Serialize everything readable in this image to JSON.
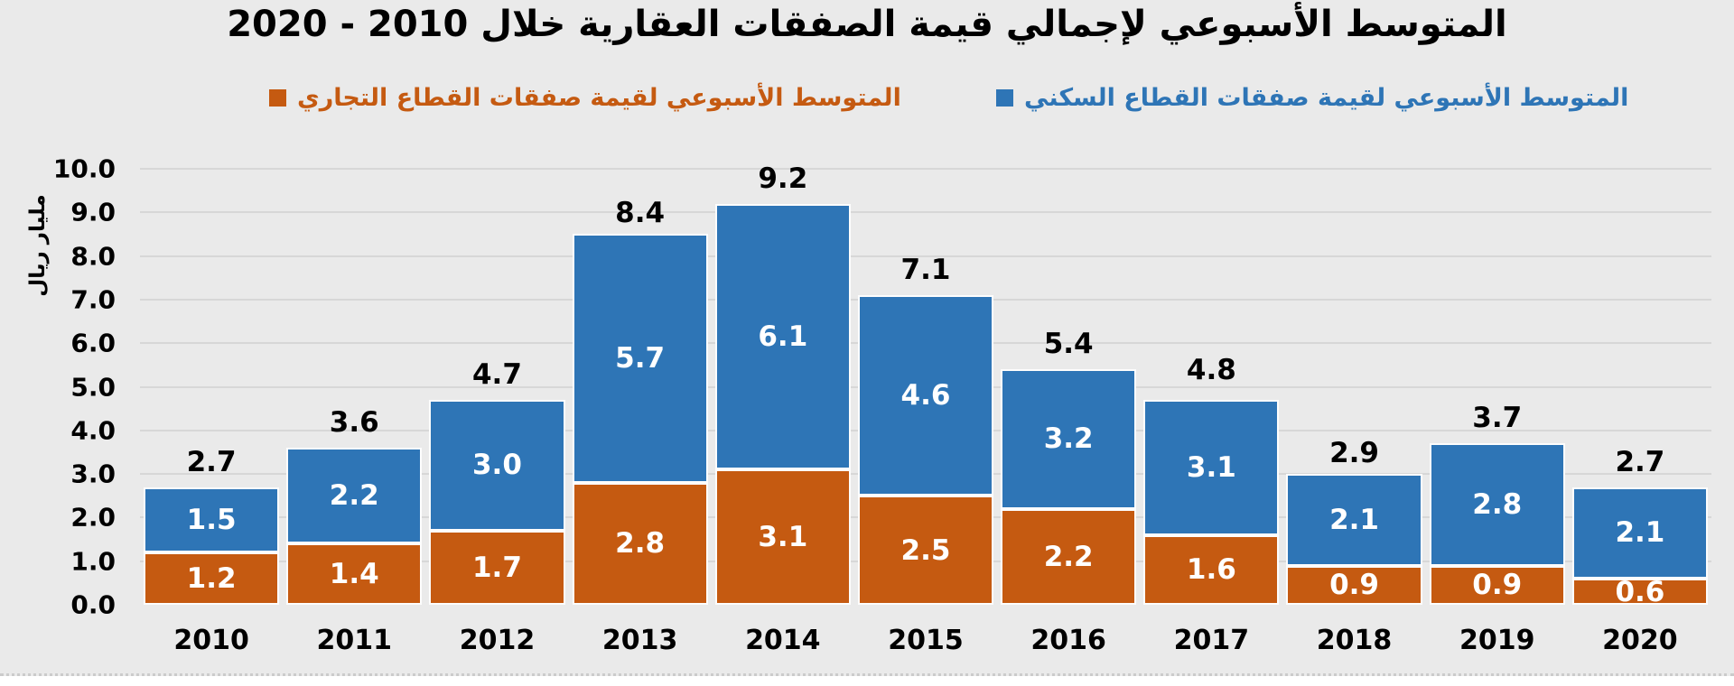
{
  "title": "المتوسط الأسبوعي لإجمالي قيمة الصفقات العقارية خلال 2010 - 2020",
  "legend": {
    "residential": {
      "label": "المتوسط الأسبوعي لقيمة صفقات القطاع السكني",
      "color": "#2E75B6"
    },
    "commercial": {
      "label": "المتوسط الأسبوعي لقيمة صفقات القطاع التجاري",
      "color": "#C55A11"
    }
  },
  "colors": {
    "background": "#EAEAEA",
    "gridline": "#D7D7D7",
    "bar_border": "#FDFDFD",
    "residential_blue": "#2E75B6",
    "commercial_orange": "#C55A11",
    "value_label": "#FFFFFF",
    "text": "#000000"
  },
  "chart_data": {
    "type": "bar",
    "stacked": true,
    "title": "المتوسط الأسبوعي لإجمالي قيمة الصفقات العقارية خلال 2010 - 2020",
    "categories": [
      "2010",
      "2011",
      "2012",
      "2013",
      "2014",
      "2015",
      "2016",
      "2017",
      "2018",
      "2019",
      "2020"
    ],
    "series": [
      {
        "name": "المتوسط الأسبوعي لقيمة صفقات القطاع التجاري",
        "color": "#C55A11",
        "values": [
          1.2,
          1.4,
          1.7,
          2.8,
          3.1,
          2.5,
          2.2,
          1.6,
          0.9,
          0.9,
          0.6
        ]
      },
      {
        "name": "المتوسط الأسبوعي لقيمة صفقات القطاع السكني",
        "color": "#2E75B6",
        "values": [
          1.5,
          2.2,
          3.0,
          5.7,
          6.1,
          4.6,
          3.2,
          3.1,
          2.1,
          2.8,
          2.1
        ]
      }
    ],
    "totals": [
      2.7,
      3.6,
      4.7,
      8.4,
      9.2,
      7.1,
      5.4,
      4.8,
      2.9,
      3.7,
      2.7
    ],
    "xlabel": "",
    "ylabel": "مليار ريال",
    "ylim": [
      0,
      10
    ],
    "yticks": [
      "0.0",
      "1.0",
      "2.0",
      "3.0",
      "4.0",
      "5.0",
      "6.0",
      "7.0",
      "8.0",
      "9.0",
      "10.0"
    ],
    "grid": true,
    "legend_position": "top"
  }
}
